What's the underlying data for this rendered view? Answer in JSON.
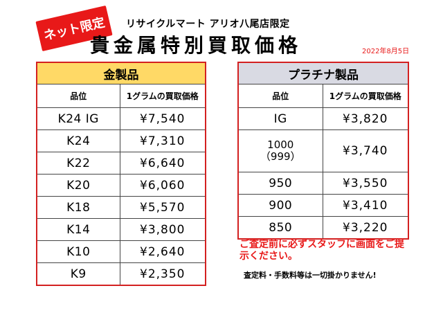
{
  "header": {
    "badge": "ネット限定",
    "store": "リサイクルマート アリオ八尾店限定",
    "title": "貴金属特別買取価格",
    "date": "2022年8月5日"
  },
  "gold_table": {
    "title": "金製品",
    "col_grade": "品位",
    "col_price": "1グラムの買取価格",
    "rows": [
      {
        "grade": "K24 IG",
        "price": "¥7,540"
      },
      {
        "grade": "K24",
        "price": "¥7,310"
      },
      {
        "grade": "K22",
        "price": "¥6,640"
      },
      {
        "grade": "K20",
        "price": "¥6,060"
      },
      {
        "grade": "K18",
        "price": "¥5,570"
      },
      {
        "grade": "K14",
        "price": "¥3,800"
      },
      {
        "grade": "K10",
        "price": "¥2,640"
      },
      {
        "grade": "K9",
        "price": "¥2,350"
      }
    ]
  },
  "platinum_table": {
    "title": "プラチナ製品",
    "col_grade": "品位",
    "col_price": "1グラムの買取価格",
    "rows": [
      {
        "grade": "IG",
        "grade2": "",
        "price": "¥3,820"
      },
      {
        "grade": "1000",
        "grade2": "（999）",
        "price": "¥3,740"
      },
      {
        "grade": "950",
        "grade2": "",
        "price": "¥3,550"
      },
      {
        "grade": "900",
        "grade2": "",
        "price": "¥3,410"
      },
      {
        "grade": "850",
        "grade2": "",
        "price": "¥3,220"
      }
    ]
  },
  "notice": "ご査定前に必ずスタッフに画面をご提示ください。",
  "fee_note": "査定料・手数料等は一切掛かりません!"
}
